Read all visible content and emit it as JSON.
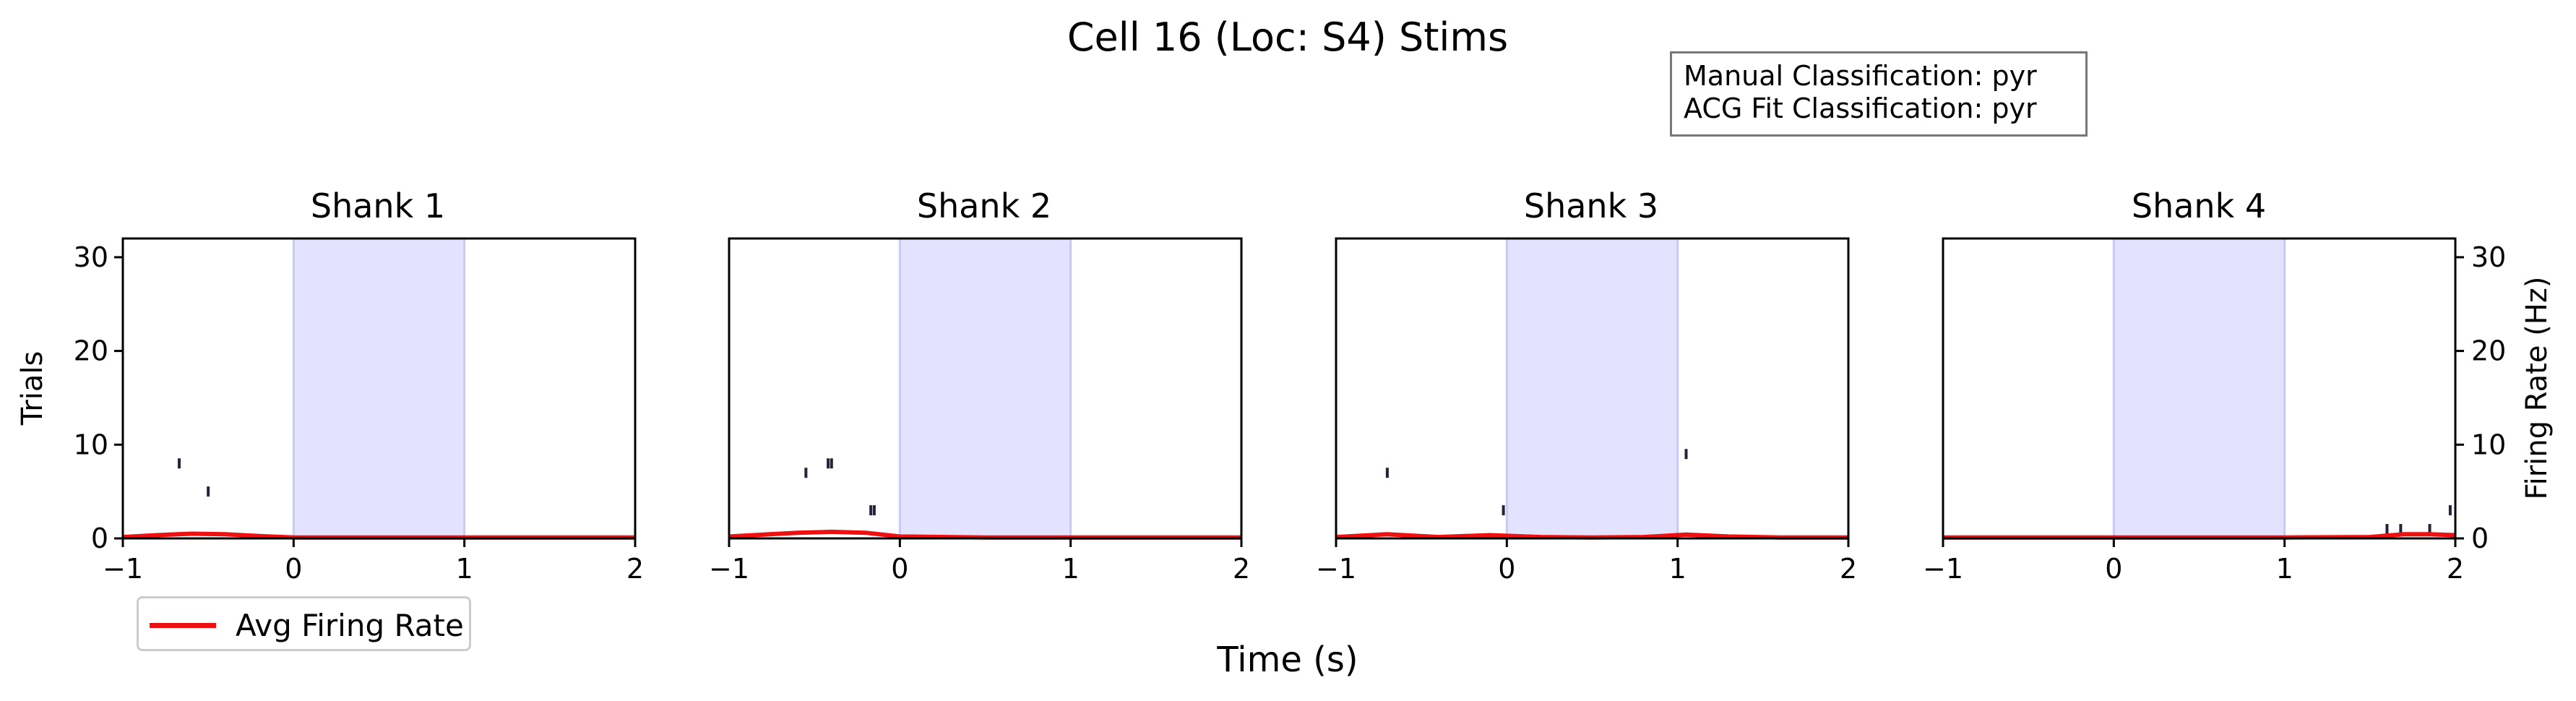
{
  "suptitle": "Cell 16 (Loc: S4) Stims",
  "classification": {
    "manual": "Manual Classification: pyr",
    "acg_fit": "ACG Fit Classification: pyr"
  },
  "legend": {
    "label": "Avg Firing Rate"
  },
  "xlabel": "Time (s)",
  "ylabel_left": "Trials",
  "ylabel_right": "Firing Rate (Hz)",
  "colors": {
    "stim_shade": "#e3e3ff",
    "stim_edge": "#c9c9f3",
    "raster": "#23233a",
    "rate": "#ee1111"
  },
  "chart_data": [
    {
      "type": "raster",
      "title": "Shank 1",
      "xlim": [
        -1,
        2
      ],
      "ylim": [
        0,
        32
      ],
      "xticks": [
        -1,
        0,
        1,
        2
      ],
      "yticks": [
        0,
        10,
        20,
        30
      ],
      "stim_window": [
        0,
        1
      ],
      "spikes": [
        {
          "t": -0.67,
          "trial": 8
        },
        {
          "t": -0.5,
          "trial": 5
        }
      ],
      "rate": {
        "t": [
          -1,
          -0.8,
          -0.6,
          -0.4,
          -0.2,
          0,
          0.5,
          1,
          1.5,
          2
        ],
        "hz": [
          0.15,
          0.35,
          0.5,
          0.45,
          0.25,
          0.1,
          0.1,
          0.1,
          0.1,
          0.1
        ]
      }
    },
    {
      "type": "raster",
      "title": "Shank 2",
      "xlim": [
        -1,
        2
      ],
      "ylim": [
        0,
        32
      ],
      "xticks": [
        -1,
        0,
        1,
        2
      ],
      "yticks": [
        0,
        10,
        20,
        30
      ],
      "stim_window": [
        0,
        1
      ],
      "spikes": [
        {
          "t": -0.55,
          "trial": 7
        },
        {
          "t": -0.42,
          "trial": 8
        },
        {
          "t": -0.4,
          "trial": 8
        },
        {
          "t": -0.17,
          "trial": 3
        },
        {
          "t": -0.15,
          "trial": 3
        }
      ],
      "rate": {
        "t": [
          -1,
          -0.8,
          -0.6,
          -0.4,
          -0.2,
          0,
          0.5,
          1,
          1.5,
          2
        ],
        "hz": [
          0.2,
          0.4,
          0.6,
          0.7,
          0.6,
          0.2,
          0.1,
          0.1,
          0.1,
          0.1
        ]
      }
    },
    {
      "type": "raster",
      "title": "Shank 3",
      "xlim": [
        -1,
        2
      ],
      "ylim": [
        0,
        32
      ],
      "xticks": [
        -1,
        0,
        1,
        2
      ],
      "yticks": [
        0,
        10,
        20,
        30
      ],
      "stim_window": [
        0,
        1
      ],
      "spikes": [
        {
          "t": -0.7,
          "trial": 7
        },
        {
          "t": -0.02,
          "trial": 3
        },
        {
          "t": 1.05,
          "trial": 9
        }
      ],
      "rate": {
        "t": [
          -1,
          -0.7,
          -0.4,
          -0.1,
          0.2,
          0.5,
          0.8,
          1.05,
          1.3,
          1.6,
          2
        ],
        "hz": [
          0.15,
          0.45,
          0.15,
          0.35,
          0.15,
          0.1,
          0.15,
          0.4,
          0.2,
          0.1,
          0.1
        ]
      }
    },
    {
      "type": "raster",
      "title": "Shank 4",
      "xlim": [
        -1,
        2
      ],
      "ylim": [
        0,
        32
      ],
      "xticks": [
        -1,
        0,
        1,
        2
      ],
      "yticks": [
        0,
        10,
        20,
        30
      ],
      "stim_window": [
        0,
        1
      ],
      "spikes": [
        {
          "t": 1.6,
          "trial": 1
        },
        {
          "t": 1.68,
          "trial": 1
        },
        {
          "t": 1.85,
          "trial": 1
        },
        {
          "t": 1.97,
          "trial": 3
        }
      ],
      "rate": {
        "t": [
          -1,
          0,
          1,
          1.5,
          1.7,
          1.85,
          2
        ],
        "hz": [
          0.1,
          0.1,
          0.1,
          0.15,
          0.45,
          0.45,
          0.35
        ]
      }
    }
  ]
}
